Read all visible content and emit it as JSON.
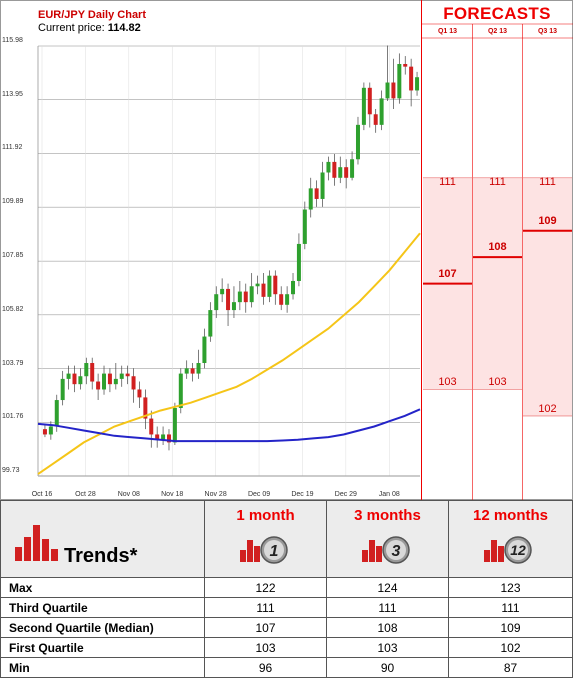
{
  "chart": {
    "title": "EUR/JPY Daily Chart",
    "price_label": "Current price:",
    "price_value": "114.82"
  },
  "forecasts": {
    "title": "FORECASTS",
    "quarters": [
      "Q1 13",
      "Q2 13",
      "Q3 13"
    ]
  },
  "chart_data": {
    "type": "candlestick",
    "y_ticks": [
      "115.98",
      "113.95",
      "111.92",
      "109.89",
      "107.85",
      "105.82",
      "103.79",
      "101.76",
      "99.73"
    ],
    "x_ticks": [
      "Oct 16",
      "Oct 28",
      "Nov 08",
      "Nov 18",
      "Nov 28",
      "Dec 09",
      "Dec 19",
      "Dec 29",
      "Jan 08"
    ],
    "ylim": [
      99.73,
      115.98
    ],
    "candles": [
      [
        101.5,
        101.3,
        101.7,
        101.2
      ],
      [
        101.3,
        101.6,
        101.8,
        101.1
      ],
      [
        101.6,
        102.6,
        102.8,
        101.4
      ],
      [
        102.6,
        103.4,
        103.7,
        102.4
      ],
      [
        103.4,
        103.6,
        103.9,
        103.0
      ],
      [
        103.6,
        103.2,
        103.9,
        102.9
      ],
      [
        103.2,
        103.5,
        103.8,
        103.0
      ],
      [
        103.5,
        104.0,
        104.2,
        103.2
      ],
      [
        104.0,
        103.3,
        104.2,
        103.0
      ],
      [
        103.3,
        103.0,
        103.6,
        102.6
      ],
      [
        103.0,
        103.6,
        103.9,
        102.8
      ],
      [
        103.6,
        103.2,
        103.8,
        102.9
      ],
      [
        103.2,
        103.4,
        104.0,
        103.0
      ],
      [
        103.4,
        103.6,
        103.9,
        103.1
      ],
      [
        103.6,
        103.5,
        103.9,
        103.2
      ],
      [
        103.5,
        103.0,
        103.8,
        102.5
      ],
      [
        103.0,
        102.7,
        103.3,
        102.3
      ],
      [
        102.7,
        101.9,
        103.0,
        101.5
      ],
      [
        101.9,
        101.3,
        102.2,
        100.8
      ],
      [
        101.3,
        101.1,
        101.6,
        100.8
      ],
      [
        101.1,
        101.3,
        101.6,
        100.9
      ],
      [
        101.3,
        101.0,
        101.5,
        100.7
      ],
      [
        101.0,
        102.3,
        102.5,
        100.9
      ],
      [
        102.3,
        103.6,
        103.8,
        102.1
      ],
      [
        103.6,
        103.8,
        104.1,
        103.4
      ],
      [
        103.8,
        103.6,
        104.0,
        103.3
      ],
      [
        103.6,
        104.0,
        104.5,
        103.4
      ],
      [
        104.0,
        105.0,
        105.3,
        103.8
      ],
      [
        105.0,
        106.0,
        106.3,
        104.8
      ],
      [
        106.0,
        106.6,
        106.9,
        105.7
      ],
      [
        106.6,
        106.8,
        107.2,
        106.3
      ],
      [
        106.8,
        106.0,
        107.0,
        105.4
      ],
      [
        106.0,
        106.3,
        106.9,
        105.7
      ],
      [
        106.3,
        106.7,
        107.1,
        106.0
      ],
      [
        106.7,
        106.3,
        107.0,
        105.9
      ],
      [
        106.3,
        106.9,
        107.4,
        106.1
      ],
      [
        106.9,
        107.0,
        107.3,
        106.6
      ],
      [
        107.0,
        106.5,
        107.4,
        106.2
      ],
      [
        106.5,
        107.3,
        107.5,
        106.3
      ],
      [
        107.3,
        106.6,
        107.5,
        106.2
      ],
      [
        106.6,
        106.2,
        106.9,
        106.0
      ],
      [
        106.2,
        106.6,
        106.9,
        105.9
      ],
      [
        106.6,
        107.1,
        107.4,
        106.4
      ],
      [
        107.1,
        108.5,
        108.9,
        106.9
      ],
      [
        108.5,
        109.8,
        110.1,
        108.3
      ],
      [
        109.8,
        110.6,
        111.0,
        109.5
      ],
      [
        110.6,
        110.2,
        110.9,
        109.9
      ],
      [
        110.2,
        111.2,
        111.6,
        109.9
      ],
      [
        111.2,
        111.6,
        111.8,
        110.9
      ],
      [
        111.6,
        111.0,
        111.9,
        110.7
      ],
      [
        111.0,
        111.4,
        111.8,
        110.8
      ],
      [
        111.4,
        111.0,
        111.7,
        110.6
      ],
      [
        111.0,
        111.7,
        112.0,
        110.9
      ],
      [
        111.7,
        113.0,
        113.3,
        111.5
      ],
      [
        113.0,
        114.4,
        114.6,
        112.8
      ],
      [
        114.4,
        113.4,
        114.6,
        112.9
      ],
      [
        113.4,
        113.0,
        113.6,
        112.7
      ],
      [
        113.0,
        114.0,
        114.3,
        112.8
      ],
      [
        114.0,
        114.6,
        116.0,
        113.9
      ],
      [
        114.6,
        114.0,
        115.5,
        113.6
      ],
      [
        114.0,
        115.3,
        115.7,
        113.8
      ],
      [
        115.3,
        115.2,
        115.6,
        114.9
      ],
      [
        115.2,
        114.3,
        115.5,
        113.7
      ],
      [
        114.3,
        114.8,
        115.0,
        114.1
      ]
    ],
    "ma_yellow": [
      99.8,
      100.2,
      100.6,
      101.0,
      101.3,
      101.6,
      101.8,
      102.0,
      102.2,
      102.35,
      102.5,
      102.7,
      102.9,
      103.1,
      103.4,
      103.75,
      104.1,
      104.5,
      104.9,
      105.3,
      105.8,
      106.3,
      106.9,
      107.5,
      108.2,
      108.9
    ],
    "ma_blue": [
      101.7,
      101.65,
      101.55,
      101.45,
      101.35,
      101.25,
      101.2,
      101.15,
      101.1,
      101.05,
      101.05,
      101.05,
      101.05,
      101.05,
      101.05,
      101.05,
      101.07,
      101.1,
      101.15,
      101.2,
      101.3,
      101.45,
      101.6,
      101.8,
      102.0,
      102.25
    ],
    "forecast_columns": [
      {
        "quarter": "Q1 13",
        "top": "111",
        "mid": "107",
        "bottom": "103",
        "top_v": 111,
        "mid_v": 107,
        "bottom_v": 103
      },
      {
        "quarter": "Q2 13",
        "top": "111",
        "mid": "108",
        "bottom": "103",
        "top_v": 111,
        "mid_v": 108,
        "bottom_v": 103
      },
      {
        "quarter": "Q3 13",
        "top": "111",
        "mid": "109",
        "bottom": "102",
        "top_v": 111,
        "mid_v": 109,
        "bottom_v": 102
      }
    ],
    "colors": {
      "up": "#2ea02e",
      "down": "#d12020",
      "ma_yellow": "#f5c518",
      "ma_blue": "#2424c8",
      "forecast_fill": "#fde3e3",
      "forecast_line": "#e00000"
    }
  },
  "table": {
    "trends_label": "Trends*",
    "periods": [
      {
        "label": "1 month",
        "badge": "1"
      },
      {
        "label": "3 months",
        "badge": "3"
      },
      {
        "label": "12 months",
        "badge": "12"
      }
    ],
    "rows": [
      {
        "label": "Max",
        "values": [
          "122",
          "124",
          "123"
        ]
      },
      {
        "label": "Third Quartile",
        "values": [
          "111",
          "111",
          "111"
        ]
      },
      {
        "label": "Second Quartile (Median)",
        "values": [
          "107",
          "108",
          "109"
        ]
      },
      {
        "label": "First Quartile",
        "values": [
          "103",
          "103",
          "102"
        ]
      },
      {
        "label": "Min",
        "values": [
          "96",
          "90",
          "87"
        ]
      }
    ]
  }
}
